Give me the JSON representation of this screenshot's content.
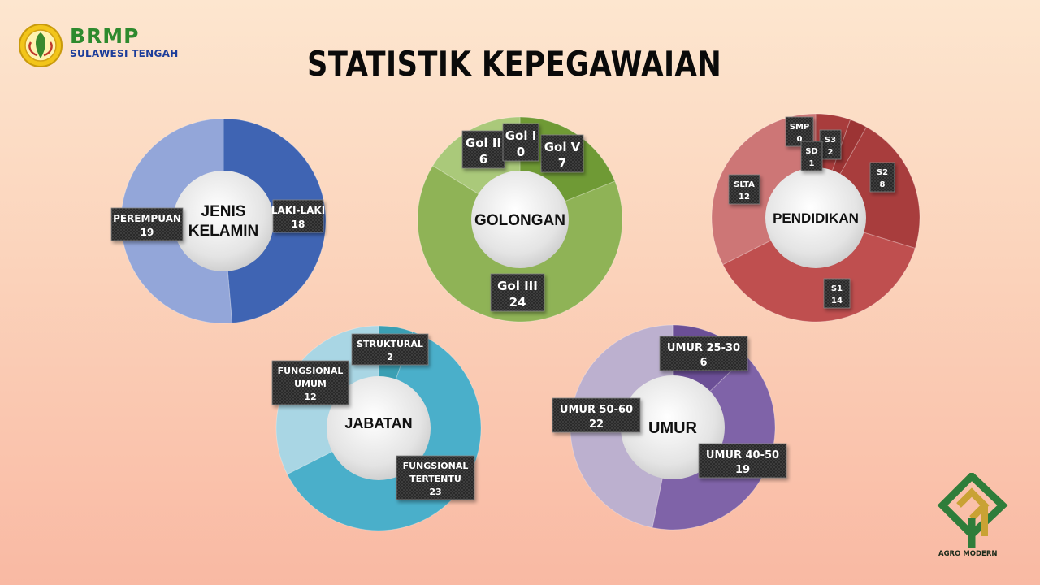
{
  "title": "STATISTIK KEPEGAWAIAN",
  "logo": {
    "name": "BRMP",
    "subtitle": "SULAWESI TENGAH"
  },
  "footer_logo": {
    "text": "AGRO MODERN"
  },
  "chart_data": [
    {
      "type": "pie",
      "center_label": [
        "JENIS",
        "KELAMIN"
      ],
      "categories": [
        "LAKI-LAKI",
        "PEREMPUAN"
      ],
      "values": [
        18,
        19
      ],
      "colors": [
        "#3f64b3",
        "#93a6d9"
      ],
      "labels": [
        {
          "name": "LAKI-LAKI",
          "value": "18"
        },
        {
          "name": "PEREMPUAN",
          "value": "19"
        }
      ]
    },
    {
      "type": "pie",
      "center_label": [
        "GOLONGAN"
      ],
      "categories": [
        "Gol V",
        "Gol III",
        "Gol II",
        "Gol I"
      ],
      "values": [
        7,
        24,
        6,
        0
      ],
      "colors": [
        "#6f9a35",
        "#8fb356",
        "#aac97a",
        "#7fa846"
      ],
      "labels": [
        {
          "name": "Gol V",
          "value": "7"
        },
        {
          "name": "Gol III",
          "value": "24"
        },
        {
          "name": "Gol II",
          "value": "6"
        },
        {
          "name": "Gol I",
          "value": "0"
        }
      ]
    },
    {
      "type": "pie",
      "center_label": [
        "PENDIDIKAN"
      ],
      "categories": [
        "SMP",
        "S3",
        "SD",
        "S2",
        "S1",
        "SLTA"
      ],
      "values": [
        0,
        2,
        1,
        8,
        14,
        12
      ],
      "colors": [
        "#b94a4a",
        "#a83c3c",
        "#9c3434",
        "#a83d3d",
        "#bf4f4f",
        "#cd7676"
      ],
      "labels": [
        {
          "name": "SMP",
          "value": "0"
        },
        {
          "name": "S3",
          "value": "2"
        },
        {
          "name": "SD",
          "value": "1"
        },
        {
          "name": "S2",
          "value": "8"
        },
        {
          "name": "S1",
          "value": "14"
        },
        {
          "name": "SLTA",
          "value": "12"
        }
      ]
    },
    {
      "type": "pie",
      "center_label": [
        "JABATAN"
      ],
      "categories": [
        "STRUKTURAL",
        "FUNGSIONAL TERTENTU",
        "FUNGSIONAL UMUM"
      ],
      "values": [
        2,
        23,
        12
      ],
      "colors": [
        "#3b9fb3",
        "#4aafca",
        "#a9d6e4"
      ],
      "labels": [
        {
          "name": "STRUKTURAL",
          "value": "2"
        },
        {
          "name": "FUNGSIONAL TERTENTU",
          "value": "23"
        },
        {
          "name": "FUNGSIONAL UMUM",
          "value": "12"
        }
      ]
    },
    {
      "type": "pie",
      "center_label": [
        "UMUR"
      ],
      "categories": [
        "UMUR 25-30",
        "UMUR 40-50",
        "UMUR 50-60"
      ],
      "values": [
        6,
        19,
        22
      ],
      "colors": [
        "#6b4f96",
        "#7f63a8",
        "#bcb0cf"
      ],
      "labels": [
        {
          "name": "UMUR 25-30",
          "value": "6"
        },
        {
          "name": "UMUR 40-50",
          "value": "19"
        },
        {
          "name": "UMUR 50-60",
          "value": "22"
        }
      ]
    }
  ]
}
